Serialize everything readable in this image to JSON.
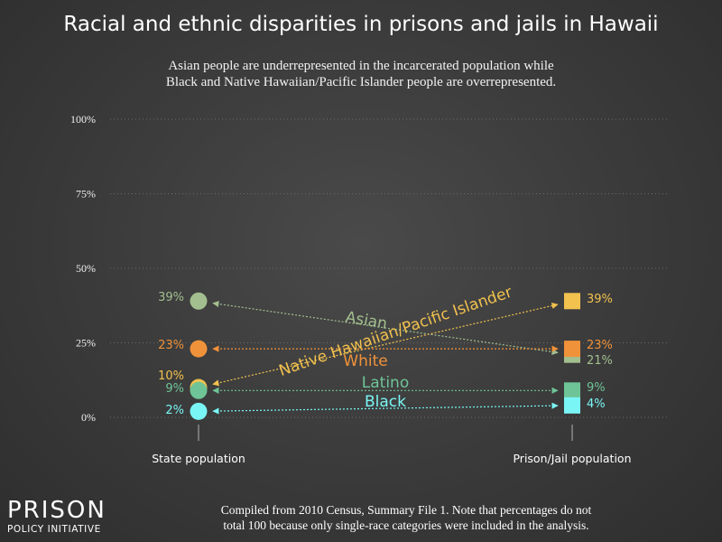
{
  "title": "Racial and ethnic disparities in prisons and jails in Hawaii",
  "subtitle": {
    "line1": "Asian people are underrepresented in the incarcerated population while",
    "line2": "Black and Native Hawaiian/Pacific Islander people are overrepresented."
  },
  "footnote": {
    "line1": "Compiled from 2010 Census, Summary File 1. Note that percentages do not",
    "line2": "total 100 because only single-race categories were included in the analysis."
  },
  "logo": {
    "top": "PRISON",
    "bottom": "POLICY INITIATIVE"
  },
  "chart_data": {
    "type": "slope",
    "categories": [
      "State population",
      "Prison/Jail population"
    ],
    "ylim": [
      0,
      100
    ],
    "yticks": [
      0,
      25,
      50,
      75,
      100
    ],
    "ytick_labels": [
      "0%",
      "25%",
      "50%",
      "75%",
      "100%"
    ],
    "series": [
      {
        "name": "Asian",
        "color": "#a3bf8f",
        "state": 39,
        "prison": 21,
        "state_label": "39%",
        "prison_label": "21%"
      },
      {
        "name": "Native Hawaiian/Pacific Islander",
        "color": "#f2c14e",
        "state": 10,
        "prison": 39,
        "state_label": "10%",
        "prison_label": "39%"
      },
      {
        "name": "White",
        "color": "#f0923a",
        "state": 23,
        "prison": 23,
        "state_label": "23%",
        "prison_label": "23%"
      },
      {
        "name": "Latino",
        "color": "#6fc497",
        "state": 9,
        "prison": 9,
        "state_label": "9%",
        "prison_label": "9%"
      },
      {
        "name": "Black",
        "color": "#7af5f5",
        "state": 2,
        "prison": 4,
        "state_label": "2%",
        "prison_label": "4%"
      }
    ]
  }
}
